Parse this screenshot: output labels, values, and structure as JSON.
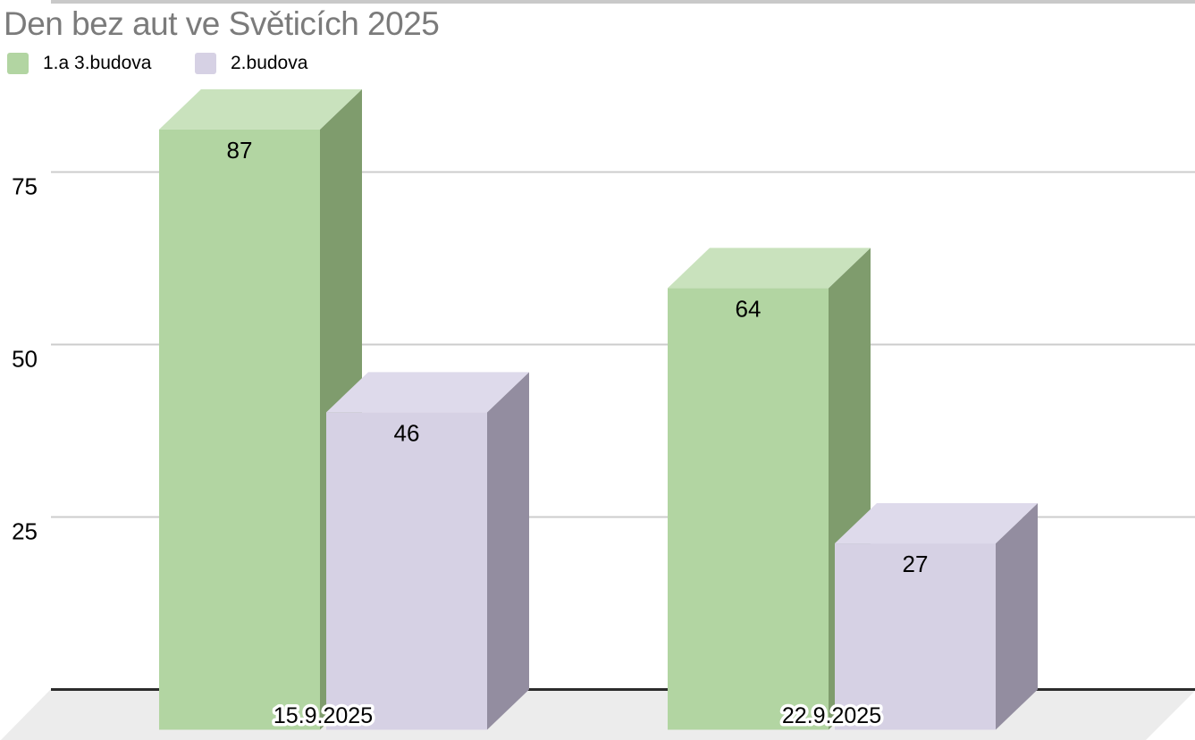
{
  "title": "Den bez aut ve Světicích 2025",
  "legend": {
    "items": [
      {
        "label": "1.a 3.budova"
      },
      {
        "label": "2.budova"
      }
    ]
  },
  "chart_data": {
    "type": "bar",
    "variant": "3d-column",
    "title": "Den bez aut ve Světicích 2025",
    "categories": [
      "15.9.2025",
      "22.9.2025"
    ],
    "series": [
      {
        "name": "1.a 3.budova",
        "values": [
          87,
          64
        ],
        "color": "#b2d5a2",
        "color_top": "#c9e2bd",
        "color_side": "#7f9c6d"
      },
      {
        "name": "2.budova",
        "values": [
          46,
          27
        ],
        "color": "#d6d1e4",
        "color_top": "#dedaeb",
        "color_side": "#938da0"
      }
    ],
    "xlabel": "",
    "ylabel": "",
    "yticks": [
      25,
      50,
      75
    ],
    "ylim": [
      0,
      100
    ],
    "grid": true,
    "legend_position": "top",
    "value_labels": true,
    "colors": {
      "gridline": "#cccccc",
      "top_clipped_gridline": "#c9c9c9",
      "baseline": "#2b2b2b",
      "floor": "#ececec",
      "value_label_text": "#000000",
      "tick_label_text": "#000000",
      "category_label_text": "#000000",
      "category_label_halo": "#ffffff",
      "title_text": "#7b7b7b"
    }
  }
}
